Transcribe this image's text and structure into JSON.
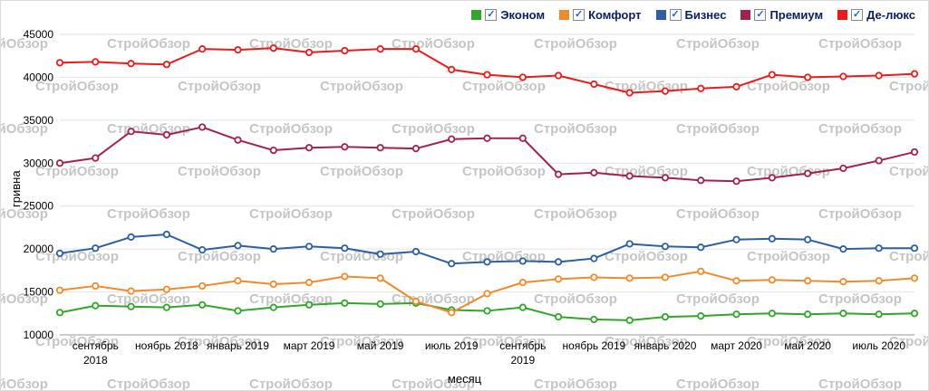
{
  "watermark": {
    "text": "СтройОбзор"
  },
  "legend": {
    "check_glyph": "✓",
    "items": [
      "Эконом",
      "Комфорт",
      "Бизнес",
      "Премиум",
      "Де-люкс"
    ]
  },
  "chart_data": {
    "type": "line",
    "title": "",
    "x_label": "месяц",
    "y_label": "гривна",
    "ylim": [
      10000,
      45000
    ],
    "y_tick_step": 5000,
    "x_count": 25,
    "grid": "horizontal",
    "legend_position": "top-right",
    "marker": "open-circle",
    "x_ticks": [
      {
        "index": 1,
        "lines": [
          "сентябрь",
          "2018"
        ]
      },
      {
        "index": 3,
        "lines": [
          "ноябрь 2018"
        ]
      },
      {
        "index": 5,
        "lines": [
          "январь 2019"
        ]
      },
      {
        "index": 7,
        "lines": [
          "март 2019"
        ]
      },
      {
        "index": 9,
        "lines": [
          "май 2019"
        ]
      },
      {
        "index": 11,
        "lines": [
          "июль 2019"
        ]
      },
      {
        "index": 13,
        "lines": [
          "сентябрь",
          "2019"
        ]
      },
      {
        "index": 15,
        "lines": [
          "ноябрь 2019"
        ]
      },
      {
        "index": 17,
        "lines": [
          "январь 2020"
        ]
      },
      {
        "index": 19,
        "lines": [
          "март 2020"
        ]
      },
      {
        "index": 21,
        "lines": [
          "май 2020"
        ]
      },
      {
        "index": 23,
        "lines": [
          "июль 2020"
        ]
      }
    ],
    "series": [
      {
        "name": "Эконом",
        "color": "#33a42c",
        "values": [
          12600,
          13400,
          13300,
          13200,
          13500,
          12800,
          13200,
          13500,
          13700,
          13600,
          13700,
          12900,
          12800,
          13200,
          12100,
          11800,
          11700,
          12100,
          12200,
          12400,
          12500,
          12400,
          12500,
          12400,
          12500
        ]
      },
      {
        "name": "Комфорт",
        "color": "#ef8b2f",
        "values": [
          15200,
          15700,
          15100,
          15300,
          15700,
          16300,
          15900,
          16100,
          16800,
          16600,
          13900,
          12600,
          14800,
          16100,
          16500,
          16700,
          16600,
          16700,
          17400,
          16300,
          16400,
          16300,
          16200,
          16300,
          16600
        ]
      },
      {
        "name": "Бизнес",
        "color": "#2e5fa3",
        "values": [
          19500,
          20100,
          21400,
          21700,
          19900,
          20400,
          20000,
          20300,
          20100,
          19400,
          19700,
          18300,
          18500,
          18600,
          18500,
          18900,
          20600,
          20300,
          20200,
          21100,
          21200,
          21100,
          20000,
          20100,
          20100
        ]
      },
      {
        "name": "Премиум",
        "color": "#a1224e",
        "values": [
          30000,
          30600,
          33700,
          33300,
          34200,
          32700,
          31500,
          31800,
          31900,
          31800,
          31700,
          32800,
          32900,
          32900,
          28700,
          28900,
          28500,
          28300,
          28000,
          27900,
          28300,
          28800,
          29400,
          30300,
          31300
        ]
      },
      {
        "name": "Де-люкс",
        "color": "#e81c1c",
        "values": [
          41700,
          41800,
          41600,
          41500,
          43300,
          43200,
          43400,
          42900,
          43100,
          43300,
          43300,
          40900,
          40300,
          40000,
          40200,
          39200,
          38200,
          38400,
          38700,
          38900,
          40300,
          40000,
          40100,
          40200,
          40400
        ]
      }
    ]
  }
}
